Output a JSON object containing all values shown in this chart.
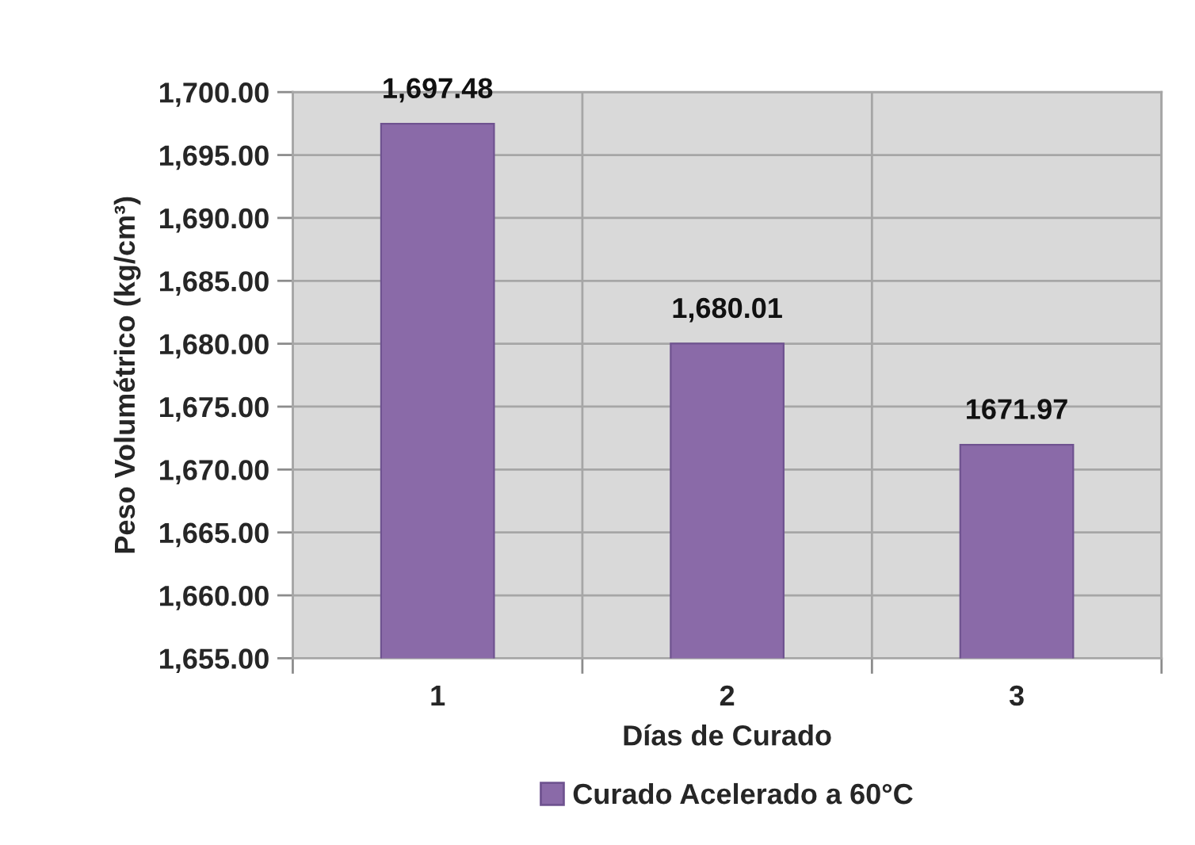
{
  "chart_data": {
    "type": "bar",
    "categories": [
      "1",
      "2",
      "3"
    ],
    "series": [
      {
        "name": "Curado Acelerado a 60°C",
        "color": "#8a6aa8",
        "values": [
          1697.48,
          1680.01,
          1671.97
        ],
        "value_labels": [
          "1,697.48",
          "1,680.01",
          "1671.97"
        ]
      }
    ],
    "xlabel": "Días de Curado",
    "ylabel": "Peso Volumétrico (kg/cm³)",
    "ylim": [
      1655,
      1700
    ],
    "yticks": [
      {
        "value": 1655,
        "label": "1,655.00"
      },
      {
        "value": 1660,
        "label": "1,660.00"
      },
      {
        "value": 1665,
        "label": "1,665.00"
      },
      {
        "value": 1670,
        "label": "1,670.00"
      },
      {
        "value": 1675,
        "label": "1,675.00"
      },
      {
        "value": 1680,
        "label": "1,680.00"
      },
      {
        "value": 1685,
        "label": "1,685.00"
      },
      {
        "value": 1690,
        "label": "1,690.00"
      },
      {
        "value": 1695,
        "label": "1,695.00"
      },
      {
        "value": 1700,
        "label": "1,700.00"
      }
    ],
    "grid": true,
    "legend": "bottom"
  }
}
